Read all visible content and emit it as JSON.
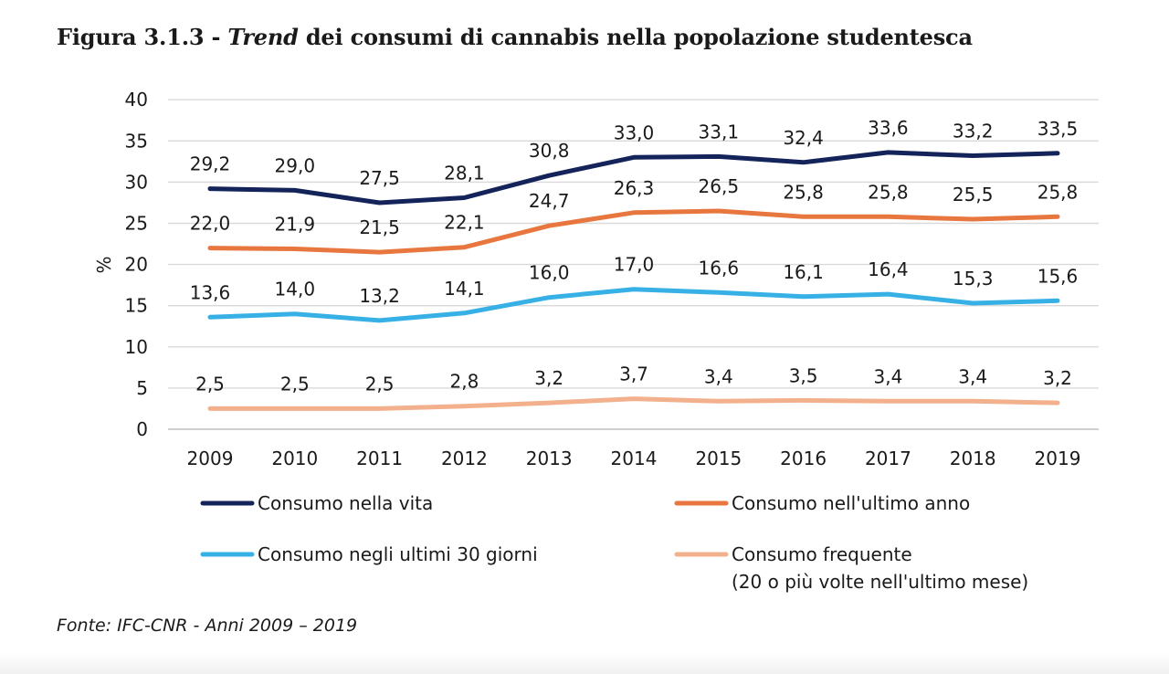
{
  "title": {
    "prefix": "Figura 3.1.3 - ",
    "italic": "Trend",
    "rest": " dei consumi di cannabis nella popolazione studentesca"
  },
  "source": "Fonte: IFC-CNR - Anni 2009 – 2019",
  "chart_data": {
    "type": "line",
    "categories": [
      "2009",
      "2010",
      "2011",
      "2012",
      "2013",
      "2014",
      "2015",
      "2016",
      "2017",
      "2018",
      "2019"
    ],
    "ylabel": "%",
    "ylim": [
      0,
      40
    ],
    "yticks": [
      "0",
      "5",
      "10",
      "15",
      "20",
      "25",
      "30",
      "35",
      "40"
    ],
    "grid": true,
    "legend_position": "bottom",
    "series": [
      {
        "name": "Consumo nella vita",
        "color": "#14245a",
        "values": [
          29.2,
          29.0,
          27.5,
          28.1,
          30.8,
          33.0,
          33.1,
          32.4,
          33.6,
          33.2,
          33.5
        ],
        "labels": [
          "29,2",
          "29,0",
          "27,5",
          "28,1",
          "30,8",
          "33,0",
          "33,1",
          "32,4",
          "33,6",
          "33,2",
          "33,5"
        ]
      },
      {
        "name": "Consumo nell'ultimo anno",
        "color": "#e8773f",
        "values": [
          22.0,
          21.9,
          21.5,
          22.1,
          24.7,
          26.3,
          26.5,
          25.8,
          25.8,
          25.5,
          25.8
        ],
        "labels": [
          "22,0",
          "21,9",
          "21,5",
          "22,1",
          "24,7",
          "26,3",
          "26,5",
          "25,8",
          "25,8",
          "25,5",
          "25,8"
        ]
      },
      {
        "name": "Consumo negli ultimi 30 giorni",
        "color": "#37b0e6",
        "values": [
          13.6,
          14.0,
          13.2,
          14.1,
          16.0,
          17.0,
          16.6,
          16.1,
          16.4,
          15.3,
          15.6
        ],
        "labels": [
          "13,6",
          "14,0",
          "13,2",
          "14,1",
          "16,0",
          "17,0",
          "16,6",
          "16,1",
          "16,4",
          "15,3",
          "15,6"
        ]
      },
      {
        "name": "Consumo frequente",
        "name_line2": "(20 o più volte nell'ultimo mese)",
        "color": "#f2b08c",
        "values": [
          2.5,
          2.5,
          2.5,
          2.8,
          3.2,
          3.7,
          3.4,
          3.5,
          3.4,
          3.4,
          3.2
        ],
        "labels": [
          "2,5",
          "2,5",
          "2,5",
          "2,8",
          "3,2",
          "3,7",
          "3,4",
          "3,5",
          "3,4",
          "3,4",
          "3,2"
        ]
      }
    ]
  }
}
